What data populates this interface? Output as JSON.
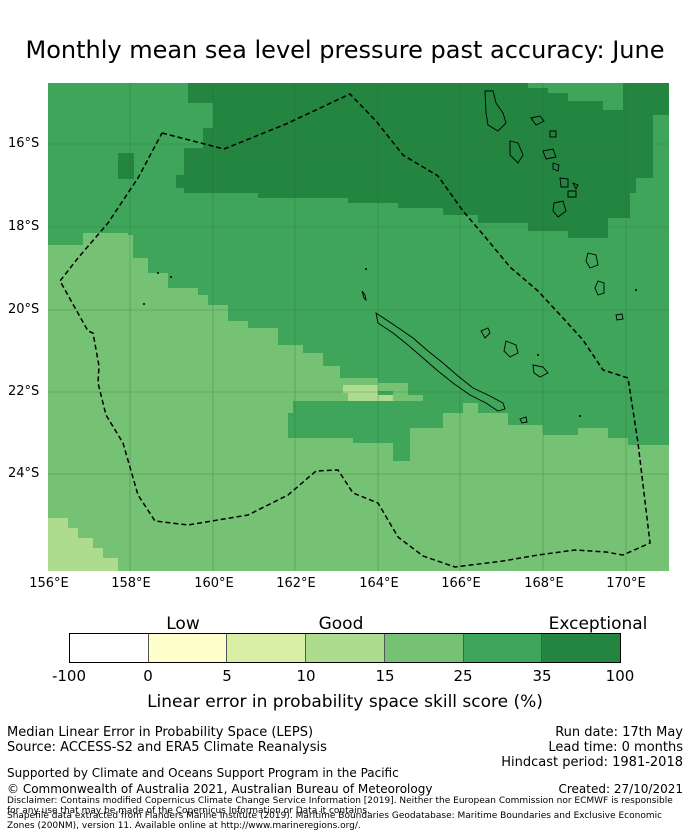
{
  "title": "Monthly mean sea level pressure past accuracy: June",
  "map": {
    "lat_labels": [
      "16°S",
      "18°S",
      "20°S",
      "22°S",
      "24°S"
    ],
    "lon_labels": [
      "156°E",
      "158°E",
      "160°E",
      "162°E",
      "164°E",
      "166°E",
      "168°E",
      "170°E"
    ],
    "colors": {
      "c100": "#23853f",
      "c35": "#3fa55a",
      "c25": "#76c274",
      "c15": "#aedc8f",
      "c10": "#d9efa3",
      "c5": "#ffffcc",
      "c0": "#ffffff"
    }
  },
  "colorbar": {
    "categories": [
      "Low",
      "Good",
      "Exceptional"
    ],
    "ticks": [
      "-100",
      "0",
      "5",
      "10",
      "15",
      "25",
      "35",
      "100"
    ],
    "colors": [
      "#ffffff",
      "#ffffcc",
      "#d9efa3",
      "#aedc8f",
      "#76c274",
      "#3fa55a",
      "#23853f"
    ],
    "label": "Linear error in probability space skill score (%)"
  },
  "footer": {
    "method": "Median Linear Error in Probability Space (LEPS)",
    "source": "Source: ACCESS-S2 and ERA5 Climate Reanalysis",
    "run_date": "Run date: 17th May",
    "lead_time": "Lead time: 0 months",
    "hindcast": "Hindcast period: 1981-2018",
    "supported": "Supported by Climate and Oceans Support Program in the Pacific",
    "copyright": "© Commonwealth of Australia 2021, Australian Bureau of Meteorology",
    "created": "Created: 27/10/2021",
    "disclaimer1": "Disclaimer: Contains modified Copernicus Climate Change Service Information [2019]. Neither the European Commission nor ECMWF is responsible for any use that may be made of the Copernicus Information or Data it contains.",
    "disclaimer2": "Shapefile data extracted from Flanders Marine Institute (2019). Maritime Boundaries Geodatabase: Maritime Boundaries and Exclusive Economic Zones (200NM), version 11. Available online at http://www.marineregions.org/."
  }
}
